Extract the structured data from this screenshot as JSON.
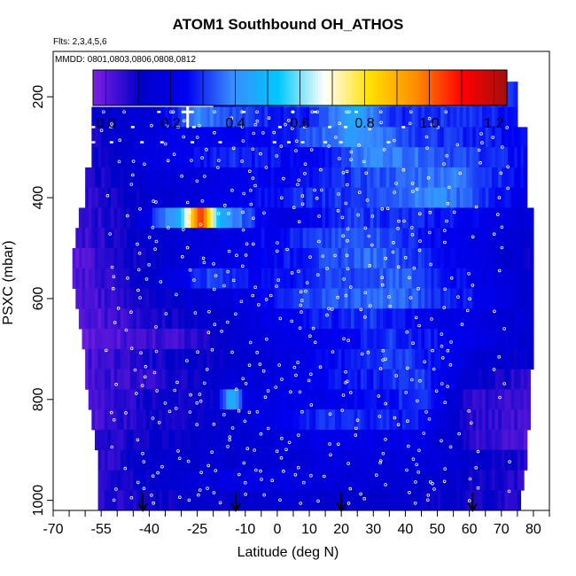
{
  "chart_data": {
    "type": "heatmap",
    "title": "ATOM1 Southbound OH_ATHOS",
    "annotations": [
      "Flts: 2,3,4,5,6",
      "MMDD: 0801,0803,0806,0808,0812"
    ],
    "xlabel": "Latitude (deg N)",
    "ylabel": "PSXC (mbar)",
    "xlim": [
      -70,
      85
    ],
    "ylim": [
      1020,
      110
    ],
    "y_reversed": true,
    "x_ticks": [
      -70,
      -55,
      -40,
      -25,
      -10,
      0,
      10,
      20,
      30,
      40,
      50,
      60,
      70,
      80
    ],
    "y_ticks": [
      200,
      400,
      600,
      800,
      1000
    ],
    "colorbar": {
      "range": [
        -0.04,
        1.24
      ],
      "ticks": [
        "0.0",
        "0.2",
        "0.4",
        "0.6",
        "0.8",
        "1.0",
        "1.2"
      ],
      "tick_values": [
        0.0,
        0.2,
        0.4,
        0.6,
        0.8,
        1.0,
        1.2
      ],
      "colors": [
        "#7a1fe0",
        "#0000c8",
        "#0000f0",
        "#3a8cff",
        "#00c8ff",
        "#ffffff",
        "#ffe000",
        "#ff8c00",
        "#ff0000",
        "#a01010"
      ]
    },
    "pressure_bands": [
      {
        "p": [
          170,
          220
        ],
        "lat": [
          -20,
          75
        ],
        "v": [
          [
            -20,
            0.24
          ],
          [
            0,
            0.32
          ],
          [
            25,
            0.5
          ],
          [
            38,
            0.33
          ],
          [
            75,
            0.3
          ]
        ]
      },
      {
        "p": [
          220,
          260
        ],
        "lat": [
          -58,
          75
        ],
        "v": [
          [
            -58,
            0.12
          ],
          [
            -40,
            0.15
          ],
          [
            -25,
            0.4
          ],
          [
            -10,
            0.3
          ],
          [
            10,
            0.26
          ],
          [
            25,
            0.45
          ],
          [
            35,
            0.28
          ],
          [
            55,
            0.3
          ],
          [
            75,
            0.26
          ]
        ]
      },
      {
        "p": [
          260,
          300
        ],
        "lat": [
          -58,
          78
        ],
        "v": [
          [
            -58,
            0.08
          ],
          [
            -40,
            0.18
          ],
          [
            -20,
            0.22
          ],
          [
            0,
            0.25
          ],
          [
            25,
            0.42
          ],
          [
            45,
            0.3
          ],
          [
            78,
            0.26
          ]
        ]
      },
      {
        "p": [
          300,
          340
        ],
        "lat": [
          -58,
          78
        ],
        "v": [
          [
            -58,
            0.08
          ],
          [
            -40,
            0.18
          ],
          [
            -15,
            0.3
          ],
          [
            10,
            0.22
          ],
          [
            30,
            0.4
          ],
          [
            50,
            0.34
          ],
          [
            78,
            0.25
          ]
        ]
      },
      {
        "p": [
          340,
          380
        ],
        "lat": [
          -60,
          78
        ],
        "v": [
          [
            -60,
            0.06
          ],
          [
            -40,
            0.14
          ],
          [
            -15,
            0.22
          ],
          [
            10,
            0.25
          ],
          [
            30,
            0.32
          ],
          [
            55,
            0.38
          ],
          [
            78,
            0.22
          ]
        ]
      },
      {
        "p": [
          380,
          420
        ],
        "lat": [
          -60,
          78
        ],
        "v": [
          [
            -60,
            0.05
          ],
          [
            -40,
            0.12
          ],
          [
            -20,
            0.2
          ],
          [
            5,
            0.28
          ],
          [
            25,
            0.3
          ],
          [
            50,
            0.4
          ],
          [
            78,
            0.2
          ]
        ]
      },
      {
        "p": [
          420,
          460
        ],
        "lat": [
          -62,
          80
        ],
        "v": [
          [
            -62,
            0.04
          ],
          [
            -45,
            0.1
          ],
          [
            -30,
            0.5
          ],
          [
            -24,
            1.1
          ],
          [
            -18,
            0.45
          ],
          [
            0,
            0.18
          ],
          [
            25,
            0.3
          ],
          [
            55,
            0.26
          ],
          [
            80,
            0.16
          ]
        ]
      },
      {
        "p": [
          460,
          500
        ],
        "lat": [
          -63,
          80
        ],
        "v": [
          [
            -63,
            0.02
          ],
          [
            -45,
            0.1
          ],
          [
            -20,
            0.18
          ],
          [
            5,
            0.28
          ],
          [
            30,
            0.34
          ],
          [
            55,
            0.22
          ],
          [
            80,
            0.12
          ]
        ]
      },
      {
        "p": [
          500,
          540
        ],
        "lat": [
          -64,
          80
        ],
        "v": [
          [
            -64,
            0.0
          ],
          [
            -45,
            0.08
          ],
          [
            -20,
            0.2
          ],
          [
            0,
            0.25
          ],
          [
            30,
            0.36
          ],
          [
            55,
            0.24
          ],
          [
            80,
            0.1
          ]
        ]
      },
      {
        "p": [
          540,
          580
        ],
        "lat": [
          -64,
          80
        ],
        "v": [
          [
            -64,
            0.0
          ],
          [
            -40,
            0.12
          ],
          [
            -20,
            0.32
          ],
          [
            -5,
            0.24
          ],
          [
            15,
            0.3
          ],
          [
            40,
            0.34
          ],
          [
            80,
            0.12
          ]
        ]
      },
      {
        "p": [
          580,
          620
        ],
        "lat": [
          -63,
          80
        ],
        "v": [
          [
            -63,
            0.0
          ],
          [
            -40,
            0.1
          ],
          [
            -15,
            0.16
          ],
          [
            10,
            0.32
          ],
          [
            35,
            0.36
          ],
          [
            60,
            0.26
          ],
          [
            80,
            0.12
          ]
        ]
      },
      {
        "p": [
          620,
          660
        ],
        "lat": [
          -62,
          80
        ],
        "v": [
          [
            -62,
            0.0
          ],
          [
            -40,
            0.06
          ],
          [
            -15,
            0.14
          ],
          [
            10,
            0.26
          ],
          [
            30,
            0.3
          ],
          [
            50,
            0.2
          ],
          [
            80,
            0.14
          ]
        ]
      },
      {
        "p": [
          660,
          700
        ],
        "lat": [
          -61,
          80
        ],
        "v": [
          [
            -61,
            0.0
          ],
          [
            -30,
            0.04
          ],
          [
            -10,
            0.16
          ],
          [
            15,
            0.22
          ],
          [
            35,
            0.3
          ],
          [
            55,
            0.24
          ],
          [
            80,
            0.12
          ]
        ]
      },
      {
        "p": [
          700,
          740
        ],
        "lat": [
          -60,
          80
        ],
        "v": [
          [
            -60,
            0.02
          ],
          [
            -40,
            0.08
          ],
          [
            -10,
            0.12
          ],
          [
            15,
            0.24
          ],
          [
            40,
            0.32
          ],
          [
            60,
            0.16
          ],
          [
            80,
            0.1
          ]
        ]
      },
      {
        "p": [
          740,
          780
        ],
        "lat": [
          -60,
          79
        ],
        "v": [
          [
            -60,
            0.02
          ],
          [
            -35,
            0.06
          ],
          [
            -10,
            0.16
          ],
          [
            20,
            0.26
          ],
          [
            45,
            0.3
          ],
          [
            60,
            0.12
          ],
          [
            79,
            0.04
          ]
        ]
      },
      {
        "p": [
          780,
          820
        ],
        "lat": [
          -59,
          79
        ],
        "v": [
          [
            -59,
            0.02
          ],
          [
            -40,
            0.08
          ],
          [
            -20,
            0.1
          ],
          [
            -14,
            0.52
          ],
          [
            -10,
            0.18
          ],
          [
            20,
            0.22
          ],
          [
            45,
            0.3
          ],
          [
            60,
            0.06
          ],
          [
            79,
            0.02
          ]
        ]
      },
      {
        "p": [
          820,
          860
        ],
        "lat": [
          -58,
          79
        ],
        "v": [
          [
            -58,
            0.02
          ],
          [
            -40,
            0.08
          ],
          [
            -15,
            0.12
          ],
          [
            15,
            0.3
          ],
          [
            45,
            0.26
          ],
          [
            60,
            0.06
          ],
          [
            79,
            0.02
          ]
        ]
      },
      {
        "p": [
          860,
          900
        ],
        "lat": [
          -57,
          78
        ],
        "v": [
          [
            -57,
            0.04
          ],
          [
            -40,
            0.1
          ],
          [
            -10,
            0.14
          ],
          [
            20,
            0.22
          ],
          [
            45,
            0.2
          ],
          [
            60,
            0.06
          ],
          [
            78,
            0.0
          ]
        ]
      },
      {
        "p": [
          900,
          940
        ],
        "lat": [
          -56,
          78
        ],
        "v": [
          [
            -56,
            0.04
          ],
          [
            -40,
            0.12
          ],
          [
            -10,
            0.14
          ],
          [
            20,
            0.18
          ],
          [
            50,
            0.16
          ],
          [
            78,
            0.06
          ]
        ]
      },
      {
        "p": [
          940,
          980
        ],
        "lat": [
          -56,
          77
        ],
        "v": [
          [
            -56,
            0.06
          ],
          [
            -35,
            0.12
          ],
          [
            -5,
            0.2
          ],
          [
            25,
            0.16
          ],
          [
            50,
            0.12
          ],
          [
            77,
            0.06
          ]
        ]
      },
      {
        "p": [
          980,
          1020
        ],
        "lat": [
          -56,
          76
        ],
        "v": [
          [
            -56,
            0.06
          ],
          [
            -30,
            0.1
          ],
          [
            0,
            0.14
          ],
          [
            30,
            0.12
          ],
          [
            55,
            0.1
          ],
          [
            76,
            0.06
          ]
        ]
      }
    ],
    "arrow_latitudes": [
      -42,
      -13,
      20,
      61
    ],
    "cross_markers": [
      [
        -28,
        230
      ]
    ]
  }
}
